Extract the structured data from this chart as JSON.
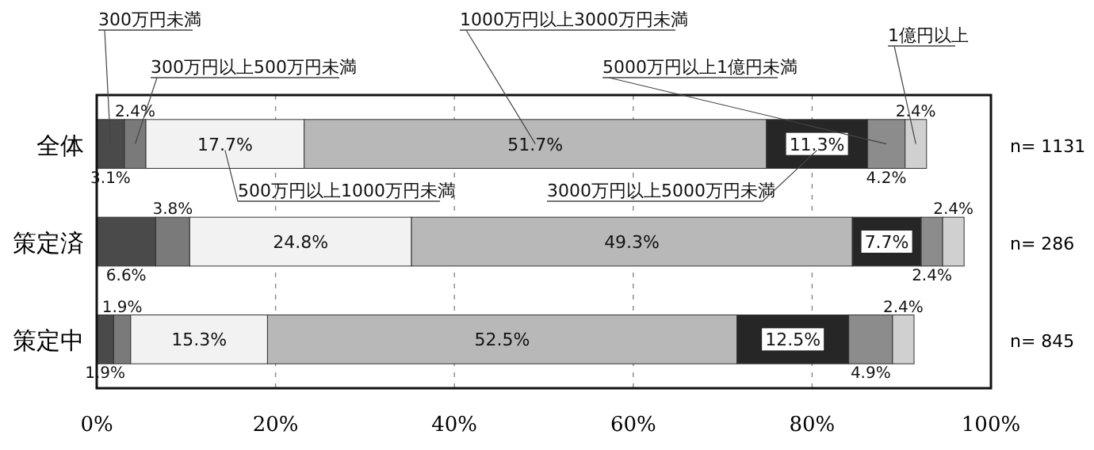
{
  "chart_data": {
    "type": "bar",
    "orientation": "horizontal",
    "stacked": true,
    "grid": "x",
    "categories": [
      "全体",
      "策定済",
      "策定中"
    ],
    "series": [
      {
        "name": "300万円未満",
        "color": "#4a4a4a",
        "values": [
          3.1,
          6.6,
          1.9
        ],
        "value_labels": [
          "3.1%",
          "6.6%",
          "1.9%"
        ]
      },
      {
        "name": "300万円以上500万円未満",
        "color": "#7a7a7a",
        "values": [
          2.4,
          3.8,
          1.9
        ],
        "value_labels": [
          "2.4%",
          "3.8%",
          "1.9%"
        ]
      },
      {
        "name": "500万円以上1000万円未満",
        "color": "#f2f2f2",
        "values": [
          17.7,
          24.8,
          15.3
        ],
        "value_labels": [
          "17.7%",
          "24.8%",
          "15.3%"
        ]
      },
      {
        "name": "1000万円以上3000万円未満",
        "color": "#b8b8b8",
        "values": [
          51.7,
          49.3,
          52.5
        ],
        "value_labels": [
          "51.7%",
          "49.3%",
          "52.5%"
        ]
      },
      {
        "name": "3000万円以上5000万円未満",
        "color": "#262626",
        "values": [
          11.3,
          7.7,
          12.5
        ],
        "value_labels": [
          "11.3%",
          "7.7%",
          "12.5%"
        ]
      },
      {
        "name": "5000万円以上1億円未満",
        "color": "#8c8c8c",
        "values": [
          4.2,
          2.4,
          4.9
        ],
        "value_labels": [
          "4.2%",
          "2.4%",
          "4.9%"
        ]
      },
      {
        "name": "1億円以上",
        "color": "#d0d0d0",
        "values": [
          2.4,
          2.4,
          2.4
        ],
        "value_labels": [
          "2.4%",
          "2.4%",
          "2.4%"
        ]
      }
    ],
    "xlim": [
      0,
      100
    ],
    "xticks": [
      {
        "value": 0,
        "label": "0%"
      },
      {
        "value": 20,
        "label": "20%"
      },
      {
        "value": 40,
        "label": "40%"
      },
      {
        "value": 60,
        "label": "60%"
      },
      {
        "value": 80,
        "label": "80%"
      },
      {
        "value": 100,
        "label": "100%"
      }
    ],
    "annotations": [
      "n= 1131",
      "n= 286",
      "n= 845"
    ]
  }
}
